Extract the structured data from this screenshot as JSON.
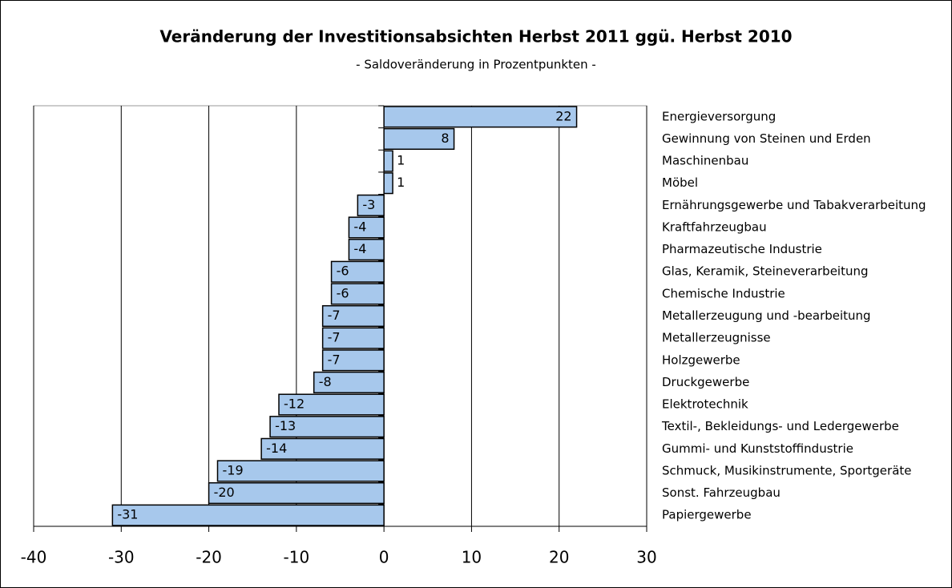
{
  "chart_data": {
    "type": "bar",
    "orientation": "horizontal",
    "title": "Veränderung der Investitionsabsichten Herbst 2011 ggü. Herbst 2010",
    "subtitle": "- Saldoveränderung in Prozentpunkten -",
    "categories": [
      "Energieversorgung",
      "Gewinnung von Steinen und Erden",
      "Maschinenbau",
      "Möbel",
      "Ernährungsgewerbe und Tabakverarbeitung",
      "Kraftfahrzeugbau",
      "Pharmazeutische Industrie",
      "Glas, Keramik, Steineverarbeitung",
      "Chemische Industrie",
      "Metallerzeugung und -bearbeitung",
      "Metallerzeugnisse",
      "Holzgewerbe",
      "Druckgewerbe",
      "Elektrotechnik",
      "Textil-, Bekleidungs- und Ledergewerbe",
      "Gummi- und Kunststoffindustrie",
      "Schmuck, Musikinstrumente, Sportgeräte",
      "Sonst. Fahrzeugbau",
      "Papiergewerbe"
    ],
    "values": [
      22,
      8,
      1,
      1,
      -3,
      -4,
      -4,
      -6,
      -6,
      -7,
      -7,
      -7,
      -8,
      -12,
      -13,
      -14,
      -19,
      -20,
      -31
    ],
    "color": "#a7c8ec",
    "xlim": [
      -40,
      30
    ],
    "xticks": [
      -40,
      -30,
      -20,
      -10,
      0,
      10,
      20,
      30
    ],
    "grid": true
  }
}
